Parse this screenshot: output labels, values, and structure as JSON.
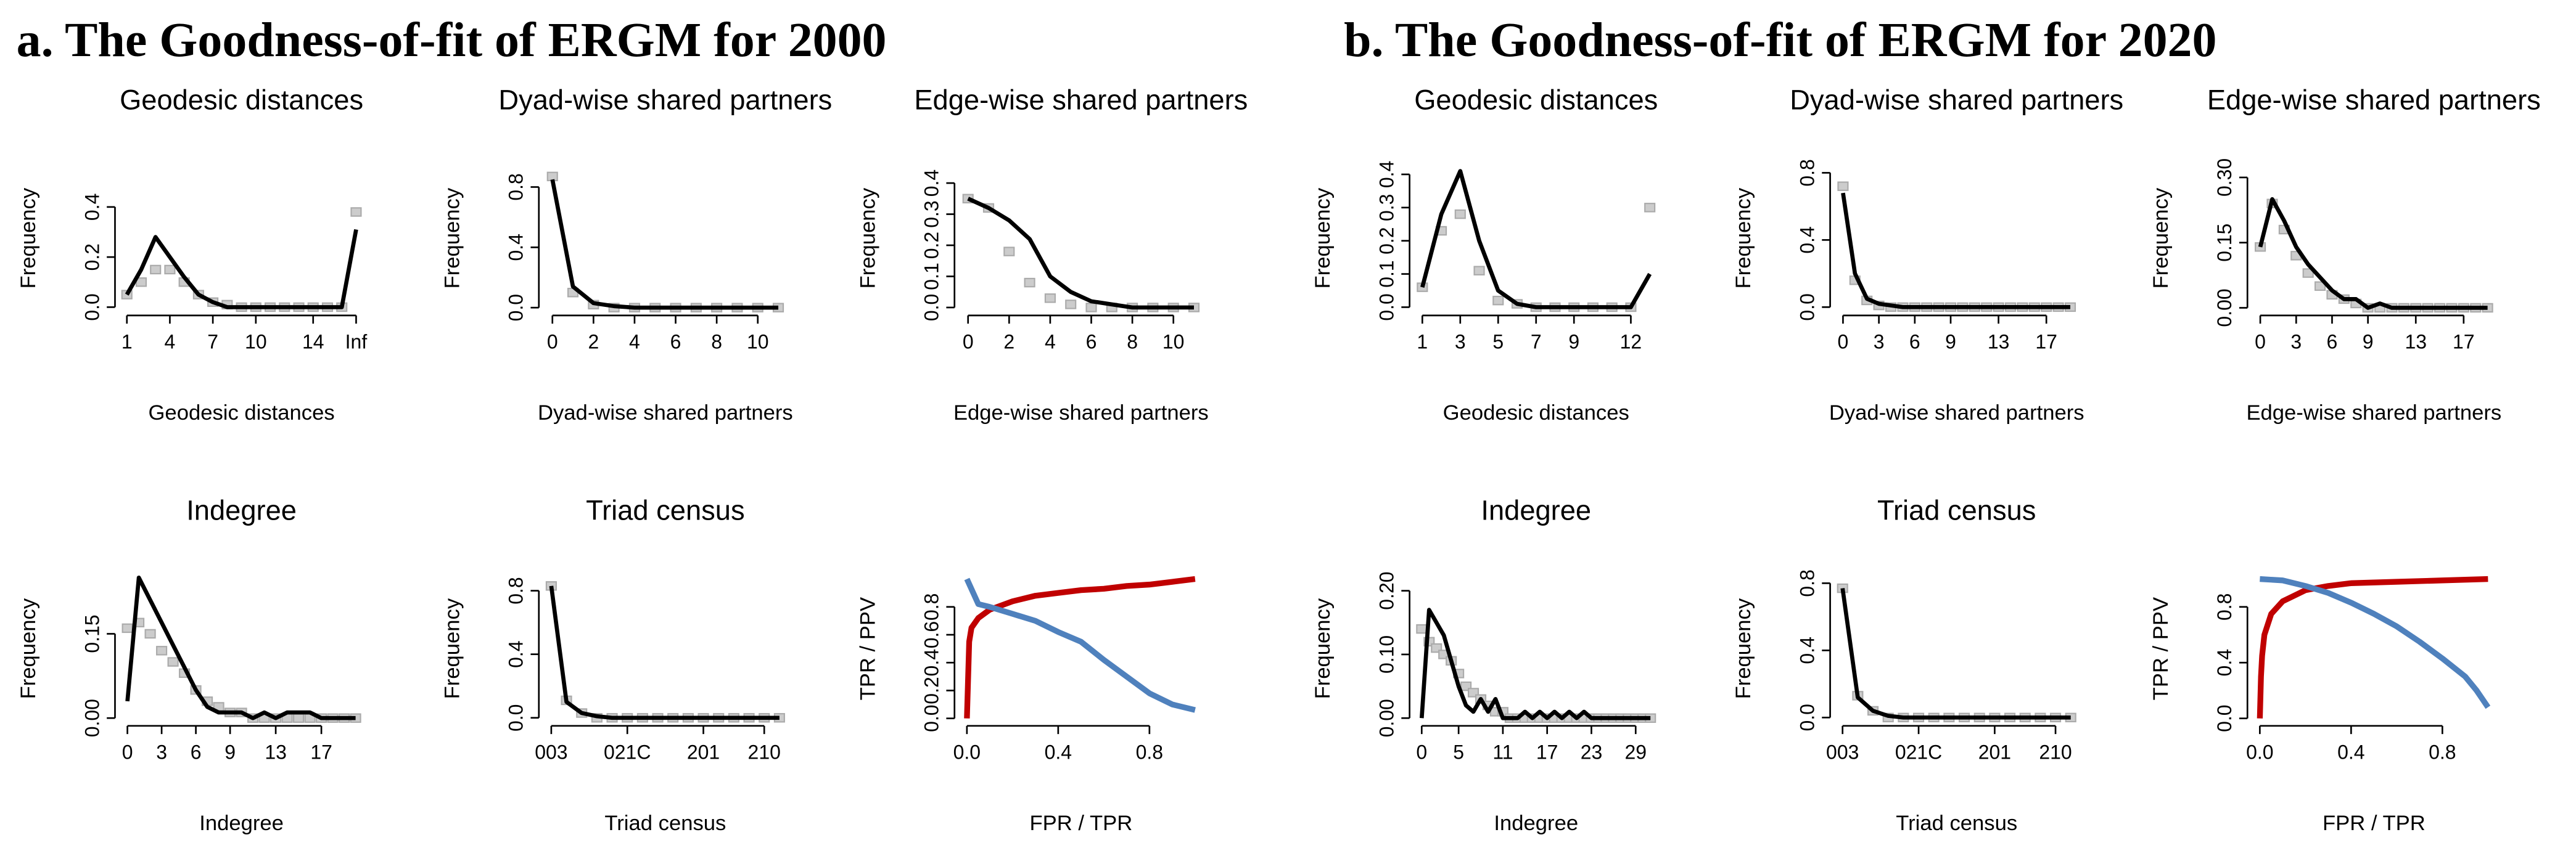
{
  "headings": [
    "a. The Goodness-of-fit of ERGM for 2000",
    "b. The Goodness-of-fit of ERGM for 2020"
  ],
  "chart_data": [
    {
      "type": "line",
      "title": "Geodesic distances",
      "xlabel": "Geodesic distances",
      "ylabel": "Frequency",
      "x": [
        1,
        2,
        3,
        4,
        5,
        6,
        7,
        8,
        9,
        10,
        11,
        12,
        13,
        14,
        15,
        16,
        17
      ],
      "xlim": [
        0.4,
        17.6
      ],
      "xticks": [
        1,
        4,
        7,
        10,
        14,
        {
          "value": 17,
          "label": "Inf"
        }
      ],
      "ylim": [
        -0.02,
        0.57
      ],
      "yticks": [
        {
          "value": 0,
          "label": "0.0"
        },
        0.2,
        0.4
      ],
      "series": [
        {
          "color": "#aaaaaa",
          "marker": "square",
          "values": [
            0.05,
            0.1,
            0.15,
            0.15,
            0.1,
            0.05,
            0.02,
            0.01,
            0,
            0,
            0,
            0,
            0,
            0,
            0,
            0,
            0.38
          ]
        },
        {
          "color": "#000000",
          "values": [
            0.05,
            0.15,
            0.28,
            0.2,
            0.12,
            0.05,
            0.02,
            0,
            0,
            0,
            0,
            0,
            0,
            0,
            0,
            0,
            0.31
          ]
        }
      ]
    },
    {
      "type": "line",
      "title": "Dyad-wise shared partners",
      "xlabel": "Dyad-wise shared partners",
      "ylabel": "Frequency",
      "x": [
        0,
        1,
        2,
        3,
        4,
        5,
        6,
        7,
        8,
        9,
        10,
        11
      ],
      "xlim": [
        -0.5,
        11.5
      ],
      "xticks": [
        0,
        2,
        4,
        6,
        8,
        10
      ],
      "ylim": [
        -0.03,
        0.95
      ],
      "yticks": [
        {
          "value": 0,
          "label": "0.0"
        },
        0.4,
        0.8
      ],
      "series": [
        {
          "color": "#aaaaaa",
          "marker": "square",
          "values": [
            0.87,
            0.1,
            0.02,
            0,
            0,
            0,
            0,
            0,
            0,
            0,
            0,
            0
          ]
        },
        {
          "color": "#000000",
          "values": [
            0.85,
            0.14,
            0.03,
            0.01,
            0,
            0,
            0,
            0,
            0,
            0,
            0,
            0
          ]
        }
      ]
    },
    {
      "type": "line",
      "title": "Edge-wise shared partners",
      "xlabel": "Edge-wise shared partners",
      "ylabel": "Frequency",
      "x": [
        0,
        1,
        2,
        3,
        4,
        5,
        6,
        7,
        8,
        9,
        10,
        11
      ],
      "xlim": [
        -0.5,
        11.5
      ],
      "xticks": [
        0,
        2,
        4,
        6,
        8,
        10
      ],
      "ylim": [
        -0.015,
        0.46
      ],
      "yticks": [
        {
          "value": 0,
          "label": "0.0"
        },
        0.1,
        0.2,
        0.3,
        0.4
      ],
      "series": [
        {
          "color": "#aaaaaa",
          "marker": "square",
          "values": [
            0.35,
            0.32,
            0.18,
            0.08,
            0.03,
            0.01,
            0,
            0,
            0,
            0,
            0,
            0
          ]
        },
        {
          "color": "#000000",
          "values": [
            0.35,
            0.32,
            0.28,
            0.22,
            0.1,
            0.05,
            0.02,
            0.01,
            0,
            0,
            0,
            0
          ]
        }
      ]
    },
    {
      "type": "line",
      "title": "Indegree",
      "xlabel": "Indegree",
      "ylabel": "Frequency",
      "x": [
        0,
        1,
        2,
        3,
        4,
        5,
        6,
        7,
        8,
        9,
        10,
        11,
        12,
        13,
        14,
        15,
        16,
        17,
        18,
        19,
        20
      ],
      "xlim": [
        -0.8,
        20.8
      ],
      "xticks": [
        0,
        3,
        6,
        9,
        13,
        17
      ],
      "ylim": [
        -0.008,
        0.255
      ],
      "yticks": [
        {
          "value": 0,
          "label": "0.00"
        },
        0.15
      ],
      "series": [
        {
          "color": "#aaaaaa",
          "marker": "square",
          "values": [
            0.16,
            0.17,
            0.15,
            0.12,
            0.1,
            0.08,
            0.05,
            0.03,
            0.02,
            0.01,
            0.01,
            0,
            0,
            0,
            0,
            0,
            0,
            0,
            0,
            0,
            0
          ]
        },
        {
          "color": "#000000",
          "values": [
            0.03,
            0.25,
            0.21,
            0.17,
            0.13,
            0.09,
            0.05,
            0.02,
            0.01,
            0.01,
            0.01,
            0,
            0.01,
            0,
            0.01,
            0.01,
            0.01,
            0,
            0,
            0,
            0
          ]
        }
      ]
    },
    {
      "type": "line",
      "title": "Triad census",
      "xlabel": "Triad census",
      "ylabel": "Frequency",
      "x": [
        1,
        2,
        3,
        4,
        5,
        6,
        7,
        8,
        9,
        10,
        11,
        12,
        13,
        14,
        15,
        16
      ],
      "xlim": [
        0.4,
        16.6
      ],
      "xticks": [
        {
          "value": 1,
          "label": "003"
        },
        {
          "value": 6,
          "label": "021C"
        },
        {
          "value": 11,
          "label": "201"
        },
        {
          "value": 15,
          "label": "210"
        }
      ],
      "ylim": [
        -0.03,
        0.9
      ],
      "yticks": [
        {
          "value": 0,
          "label": "0.0"
        },
        0.4,
        0.8
      ],
      "series": [
        {
          "color": "#aaaaaa",
          "marker": "square",
          "values": [
            0.83,
            0.11,
            0.03,
            0,
            0,
            0,
            0,
            0,
            0,
            0,
            0,
            0,
            0,
            0,
            0,
            0
          ]
        },
        {
          "color": "#000000",
          "values": [
            0.83,
            0.1,
            0.03,
            0.01,
            0,
            0,
            0,
            0,
            0,
            0,
            0,
            0,
            0,
            0,
            0,
            0
          ]
        }
      ]
    },
    {
      "type": "line",
      "xlabel": "FPR / TPR",
      "ylabel": "TPR / PPV",
      "xlim": [
        -0.04,
        1.04
      ],
      "xticks": [
        {
          "value": 0,
          "label": "0.0"
        },
        0.4,
        0.8
      ],
      "ylim": [
        -0.03,
        1.03
      ],
      "yticks": [
        {
          "value": 0,
          "label": "0.0"
        },
        0.2,
        0.4,
        0.6,
        0.8
      ],
      "series": [
        {
          "color": "#c00000",
          "x": [
            0,
            0.01,
            0.02,
            0.05,
            0.1,
            0.2,
            0.3,
            0.4,
            0.5,
            0.6,
            0.7,
            0.8,
            0.9,
            1
          ],
          "values": [
            0,
            0.55,
            0.65,
            0.72,
            0.78,
            0.84,
            0.88,
            0.9,
            0.92,
            0.93,
            0.95,
            0.96,
            0.98,
            1
          ]
        },
        {
          "color": "#4f81bd",
          "x": [
            0,
            0.05,
            0.1,
            0.2,
            0.3,
            0.4,
            0.5,
            0.6,
            0.7,
            0.8,
            0.9,
            1
          ],
          "values": [
            1,
            0.82,
            0.8,
            0.75,
            0.7,
            0.62,
            0.55,
            0.42,
            0.3,
            0.18,
            0.1,
            0.06
          ]
        }
      ]
    },
    {
      "type": "line",
      "title": "Geodesic distances",
      "xlabel": "Geodesic distances",
      "ylabel": "Frequency",
      "x": [
        1,
        2,
        3,
        4,
        5,
        6,
        7,
        8,
        9,
        10,
        11,
        12,
        13
      ],
      "xlim": [
        0.5,
        13.5
      ],
      "xticks": [
        1,
        3,
        5,
        7,
        9,
        12
      ],
      "ylim": [
        -0.015,
        0.43
      ],
      "yticks": [
        {
          "value": 0,
          "label": "0.0"
        },
        0.1,
        0.2,
        0.3,
        0.4
      ],
      "series": [
        {
          "color": "#aaaaaa",
          "marker": "square",
          "values": [
            0.06,
            0.23,
            0.28,
            0.11,
            0.02,
            0.01,
            0,
            0,
            0,
            0,
            0,
            0,
            0.3
          ]
        },
        {
          "color": "#000000",
          "values": [
            0.06,
            0.28,
            0.41,
            0.2,
            0.05,
            0.01,
            0,
            0,
            0,
            0,
            0,
            0,
            0.1
          ]
        }
      ]
    },
    {
      "type": "line",
      "title": "Dyad-wise shared partners",
      "xlabel": "Dyad-wise shared partners",
      "ylabel": "Frequency",
      "x": [
        0,
        1,
        2,
        3,
        4,
        5,
        6,
        7,
        8,
        9,
        10,
        11,
        12,
        13,
        14,
        15,
        16,
        17,
        18,
        19
      ],
      "xlim": [
        -0.8,
        19.8
      ],
      "xticks": [
        0,
        3,
        6,
        9,
        13,
        17
      ],
      "ylim": [
        -0.03,
        0.85
      ],
      "yticks": [
        {
          "value": 0,
          "label": "0.0"
        },
        0.4,
        0.8
      ],
      "series": [
        {
          "color": "#aaaaaa",
          "marker": "square",
          "values": [
            0.72,
            0.16,
            0.04,
            0.01,
            0,
            0,
            0,
            0,
            0,
            0,
            0,
            0,
            0,
            0,
            0,
            0,
            0,
            0,
            0,
            0
          ]
        },
        {
          "color": "#000000",
          "values": [
            0.68,
            0.2,
            0.05,
            0.02,
            0.01,
            0,
            0,
            0,
            0,
            0,
            0,
            0,
            0,
            0,
            0,
            0,
            0,
            0,
            0,
            0
          ]
        }
      ]
    },
    {
      "type": "line",
      "title": "Edge-wise shared partners",
      "xlabel": "Edge-wise shared partners",
      "ylabel": "Frequency",
      "x": [
        0,
        1,
        2,
        3,
        4,
        5,
        6,
        7,
        8,
        9,
        10,
        11,
        12,
        13,
        14,
        15,
        16,
        17,
        18,
        19
      ],
      "xlim": [
        -0.8,
        19.8
      ],
      "xticks": [
        0,
        3,
        6,
        9,
        13,
        17
      ],
      "ylim": [
        -0.01,
        0.33
      ],
      "yticks": [
        {
          "value": 0,
          "label": "0.00"
        },
        0.15,
        {
          "value": 0.3,
          "label": "0.30"
        }
      ],
      "series": [
        {
          "color": "#aaaaaa",
          "marker": "square",
          "values": [
            0.14,
            0.24,
            0.18,
            0.12,
            0.08,
            0.05,
            0.03,
            0.02,
            0.01,
            0,
            0,
            0,
            0,
            0,
            0,
            0,
            0,
            0,
            0,
            0
          ]
        },
        {
          "color": "#000000",
          "values": [
            0.14,
            0.25,
            0.2,
            0.14,
            0.1,
            0.07,
            0.04,
            0.02,
            0.02,
            0,
            0.01,
            0,
            0,
            0,
            0,
            0,
            0,
            0,
            0,
            0
          ]
        }
      ]
    },
    {
      "type": "line",
      "title": "Indegree",
      "xlabel": "Indegree",
      "ylabel": "Frequency",
      "x": [
        0,
        1,
        2,
        3,
        4,
        5,
        6,
        7,
        8,
        9,
        10,
        11,
        12,
        13,
        14,
        15,
        16,
        17,
        18,
        19,
        20,
        21,
        22,
        23,
        24,
        25,
        26,
        27,
        28,
        29,
        30,
        31
      ],
      "xlim": [
        -1.2,
        32.2
      ],
      "xticks": [
        0,
        5,
        11,
        17,
        23,
        29
      ],
      "ylim": [
        -0.007,
        0.225
      ],
      "yticks": [
        {
          "value": 0,
          "label": "0.00"
        },
        {
          "value": 0.1,
          "label": "0.10"
        },
        {
          "value": 0.2,
          "label": "0.20"
        }
      ],
      "series": [
        {
          "color": "#aaaaaa",
          "marker": "square",
          "values": [
            0.14,
            0.12,
            0.11,
            0.1,
            0.09,
            0.07,
            0.05,
            0.04,
            0.03,
            0.02,
            0.01,
            0.01,
            0,
            0,
            0,
            0,
            0,
            0,
            0,
            0,
            0,
            0,
            0,
            0,
            0,
            0,
            0,
            0,
            0,
            0,
            0,
            0
          ]
        },
        {
          "color": "#000000",
          "values": [
            0,
            0.17,
            0.15,
            0.13,
            0.09,
            0.05,
            0.02,
            0.01,
            0.03,
            0.01,
            0.03,
            0,
            0,
            0,
            0.01,
            0,
            0.01,
            0,
            0.01,
            0,
            0.01,
            0,
            0.01,
            0,
            0,
            0,
            0,
            0,
            0,
            0,
            0,
            0
          ]
        }
      ]
    },
    {
      "type": "line",
      "title": "Triad census",
      "xlabel": "Triad census",
      "ylabel": "Frequency",
      "x": [
        1,
        2,
        3,
        4,
        5,
        6,
        7,
        8,
        9,
        10,
        11,
        12,
        13,
        14,
        15,
        16
      ],
      "xlim": [
        0.4,
        16.6
      ],
      "xticks": [
        {
          "value": 1,
          "label": "003"
        },
        {
          "value": 6,
          "label": "021C"
        },
        {
          "value": 11,
          "label": "201"
        },
        {
          "value": 15,
          "label": "210"
        }
      ],
      "ylim": [
        -0.03,
        0.85
      ],
      "yticks": [
        {
          "value": 0,
          "label": "0.0"
        },
        0.4,
        0.8
      ],
      "series": [
        {
          "color": "#aaaaaa",
          "marker": "square",
          "values": [
            0.77,
            0.13,
            0.04,
            0,
            0,
            0,
            0,
            0,
            0,
            0,
            0,
            0,
            0,
            0,
            0,
            0
          ]
        },
        {
          "color": "#000000",
          "values": [
            0.77,
            0.12,
            0.04,
            0.01,
            0,
            0,
            0,
            0,
            0,
            0,
            0,
            0,
            0,
            0,
            0,
            0
          ]
        }
      ]
    },
    {
      "type": "line",
      "xlabel": "FPR / TPR",
      "ylabel": "TPR / PPV",
      "xlim": [
        -0.04,
        1.04
      ],
      "xticks": [
        {
          "value": 0,
          "label": "0.0"
        },
        0.4,
        0.8
      ],
      "ylim": [
        -0.03,
        1.03
      ],
      "yticks": [
        {
          "value": 0,
          "label": "0.0"
        },
        0.4,
        0.8
      ],
      "series": [
        {
          "color": "#c00000",
          "x": [
            0,
            0.005,
            0.01,
            0.02,
            0.05,
            0.1,
            0.15,
            0.2,
            0.3,
            0.4,
            0.6,
            0.8,
            1
          ],
          "values": [
            0,
            0.3,
            0.45,
            0.6,
            0.75,
            0.84,
            0.88,
            0.92,
            0.95,
            0.97,
            0.98,
            0.99,
            1
          ]
        },
        {
          "color": "#4f81bd",
          "x": [
            0,
            0.1,
            0.2,
            0.3,
            0.4,
            0.5,
            0.6,
            0.7,
            0.8,
            0.9,
            0.95,
            1
          ],
          "values": [
            1,
            0.99,
            0.95,
            0.9,
            0.83,
            0.75,
            0.66,
            0.55,
            0.43,
            0.3,
            0.2,
            0.08
          ]
        }
      ]
    }
  ]
}
